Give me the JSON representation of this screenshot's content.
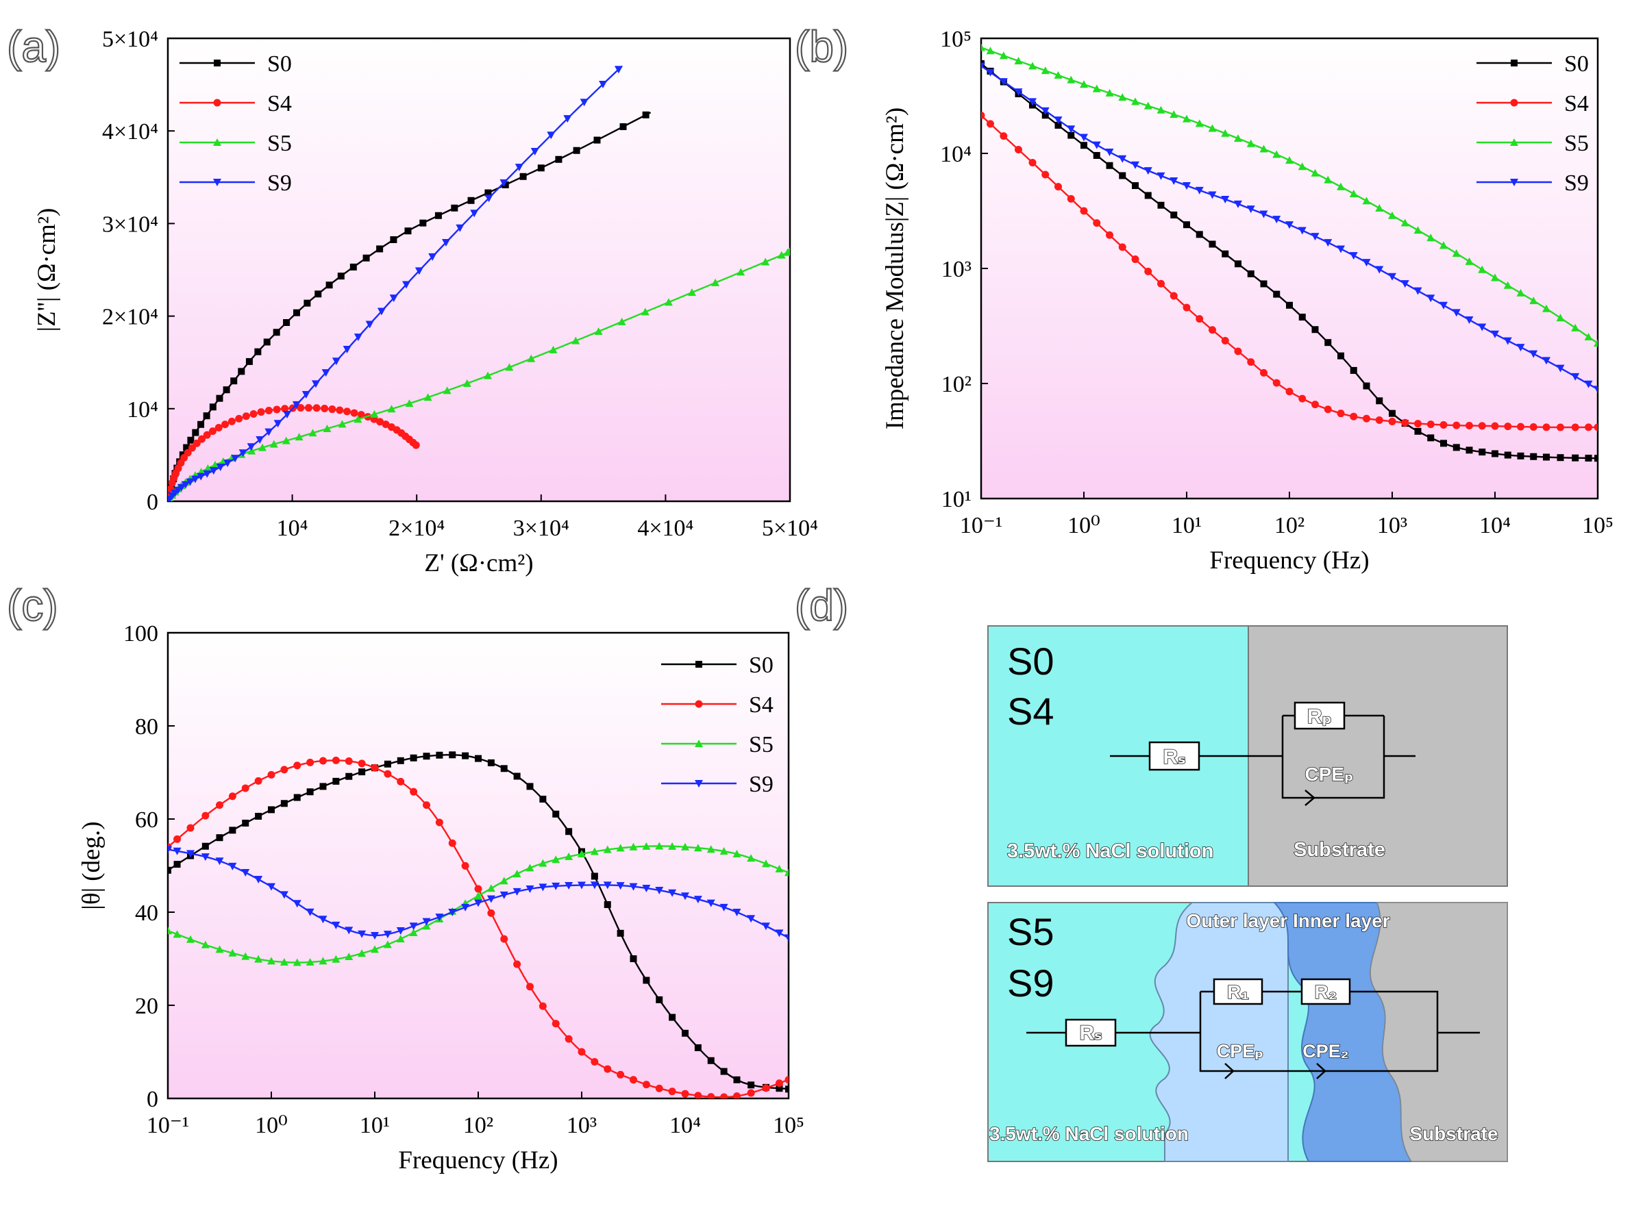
{
  "panels": {
    "a": {
      "label": "(a)"
    },
    "b": {
      "label": "(b)"
    },
    "c": {
      "label": "(c)"
    },
    "d": {
      "label": "(d)"
    }
  },
  "colors": {
    "S0": "#000000",
    "S4": "#ff1a1a",
    "S5": "#22dd22",
    "S9": "#1a2bff",
    "plot_bg_top": "#ffffff",
    "plot_bg_bottom": "#fbd0f4"
  },
  "chart_data": [
    {
      "id": "a",
      "type": "line",
      "subtype": "nyquist",
      "xlabel": "Z' (Ω·cm²)",
      "ylabel": "|Z''| (Ω·cm²)",
      "xlim": [
        0,
        50000
      ],
      "ylim": [
        0,
        50000
      ],
      "xticks": [
        10000,
        20000,
        30000,
        40000,
        50000
      ],
      "yticks": [
        0,
        10000,
        20000,
        30000,
        40000,
        50000
      ],
      "tick_labels_x": [
        "10⁴",
        "2×10⁴",
        "3×10⁴",
        "4×10⁴",
        "5×10⁴"
      ],
      "tick_labels_y": [
        "0",
        "10⁴",
        "2×10⁴",
        "3×10⁴",
        "4×10⁴",
        "5×10⁴"
      ],
      "legend": [
        "S0",
        "S4",
        "S5",
        "S9"
      ],
      "legend_position": "top-left",
      "series": [
        {
          "name": "S0",
          "marker": "square",
          "x": [
            0,
            400,
            800,
            1500,
            2500,
            3800,
            5300,
            7000,
            9000,
            11200,
            13600,
            16300,
            19300,
            22600,
            26200,
            30000,
            33900,
            38800
          ],
          "y": [
            0,
            2200,
            3800,
            5800,
            8000,
            10500,
            13000,
            15800,
            18600,
            21400,
            24000,
            26600,
            29200,
            31400,
            33600,
            36000,
            38600,
            42000
          ]
        },
        {
          "name": "S4",
          "marker": "circle",
          "x": [
            0,
            300,
            700,
            1300,
            2200,
            3300,
            4600,
            6100,
            7700,
            9400,
            11100,
            12800,
            14400,
            15900,
            17200,
            18400,
            19300,
            20000
          ],
          "y": [
            0,
            1800,
            3200,
            4700,
            6100,
            7300,
            8300,
            9100,
            9700,
            10000,
            10100,
            10000,
            9700,
            9200,
            8500,
            7700,
            6800,
            6000
          ]
        },
        {
          "name": "S5",
          "marker": "triangle-up",
          "x": [
            0,
            500,
            1200,
            2200,
            3600,
            5400,
            7600,
            10200,
            13200,
            16600,
            20400,
            24600,
            29200,
            34000,
            39000,
            44000,
            49000,
            50000
          ],
          "y": [
            0,
            900,
            1800,
            2800,
            3800,
            4800,
            5800,
            6800,
            8000,
            9400,
            11000,
            13000,
            15400,
            18000,
            20800,
            23600,
            26400,
            27000
          ]
        },
        {
          "name": "S9",
          "marker": "triangle-down",
          "x": [
            0,
            500,
            1200,
            2200,
            3500,
            5000,
            6700,
            8600,
            10600,
            12700,
            15000,
            17500,
            20200,
            23100,
            26200,
            29500,
            33000,
            36500
          ],
          "y": [
            0,
            800,
            1600,
            2400,
            3200,
            4300,
            5900,
            8100,
            10800,
            13900,
            17300,
            21000,
            24900,
            29000,
            33300,
            37800,
            42500,
            47000
          ]
        }
      ]
    },
    {
      "id": "b",
      "type": "line",
      "subtype": "bode-modulus",
      "xlabel": "Frequency (Hz)",
      "ylabel": "Impedance Modulus|Z| (Ω·cm²)",
      "xscale": "log",
      "yscale": "log",
      "xlim": [
        0.1,
        100000
      ],
      "ylim": [
        10,
        100000
      ],
      "tick_labels_x": [
        "10⁻¹",
        "10⁰",
        "10¹",
        "10²",
        "10³",
        "10⁴",
        "10⁵"
      ],
      "tick_labels_y": [
        "10¹",
        "10²",
        "10³",
        "10⁴",
        "10⁵"
      ],
      "legend": [
        "S0",
        "S4",
        "S5",
        "S9"
      ],
      "legend_position": "top-right",
      "series": [
        {
          "name": "S0",
          "marker": "square",
          "logx": [
            -1,
            -0.5,
            0,
            0.5,
            1,
            1.5,
            2,
            2.5,
            3,
            3.5,
            4,
            4.5,
            5
          ],
          "logy": [
            4.78,
            4.42,
            4.07,
            3.72,
            3.38,
            3.04,
            2.68,
            2.24,
            1.74,
            1.48,
            1.39,
            1.36,
            1.35
          ]
        },
        {
          "name": "S4",
          "marker": "circle",
          "logx": [
            -1,
            -0.5,
            0,
            0.5,
            1,
            1.5,
            2,
            2.5,
            3,
            3.5,
            4,
            4.5,
            5
          ],
          "logy": [
            4.33,
            3.92,
            3.5,
            3.08,
            2.66,
            2.28,
            1.93,
            1.74,
            1.67,
            1.64,
            1.63,
            1.62,
            1.62
          ]
        },
        {
          "name": "S5",
          "marker": "triangle-up",
          "logx": [
            -1,
            -0.5,
            0,
            0.5,
            1,
            1.5,
            2,
            2.5,
            3,
            3.5,
            4,
            4.5,
            5
          ],
          "logy": [
            4.92,
            4.76,
            4.6,
            4.45,
            4.3,
            4.13,
            3.94,
            3.71,
            3.46,
            3.2,
            2.92,
            2.65,
            2.35
          ]
        },
        {
          "name": "S9",
          "marker": "triangle-down",
          "logx": [
            -1,
            -0.5,
            0,
            0.5,
            1,
            1.5,
            2,
            2.5,
            3,
            3.5,
            4,
            4.5,
            5
          ],
          "logy": [
            4.76,
            4.45,
            4.14,
            3.9,
            3.72,
            3.56,
            3.38,
            3.17,
            2.93,
            2.68,
            2.43,
            2.2,
            1.95
          ]
        }
      ]
    },
    {
      "id": "c",
      "type": "line",
      "subtype": "bode-phase",
      "xlabel": "Frequency (Hz)",
      "ylabel": "|θ| (deg.)",
      "xscale": "log",
      "xlim": [
        0.1,
        100000
      ],
      "ylim": [
        0,
        100
      ],
      "yticks": [
        0,
        20,
        40,
        60,
        80,
        100
      ],
      "tick_labels_x": [
        "10⁻¹",
        "10⁰",
        "10¹",
        "10²",
        "10³",
        "10⁴",
        "10⁵"
      ],
      "tick_labels_y": [
        "0",
        "20",
        "40",
        "60",
        "80",
        "100"
      ],
      "legend": [
        "S0",
        "S4",
        "S5",
        "S9"
      ],
      "legend_position": "top-right",
      "series": [
        {
          "name": "S0",
          "marker": "square",
          "logx": [
            -1,
            -0.5,
            0,
            0.5,
            1,
            1.5,
            2,
            2.5,
            3,
            3.5,
            4,
            4.5,
            5
          ],
          "y": [
            49,
            56,
            62,
            67,
            71,
            73.5,
            73,
            67,
            53,
            30,
            14,
            4,
            2
          ]
        },
        {
          "name": "S4",
          "marker": "circle",
          "logx": [
            -1,
            -0.5,
            0,
            0.5,
            1,
            1.5,
            2,
            2.5,
            3,
            3.5,
            4,
            4.5,
            5
          ],
          "y": [
            54,
            63,
            69.5,
            72.5,
            71,
            63,
            45,
            24,
            10,
            4,
            1,
            0.5,
            4
          ]
        },
        {
          "name": "S5",
          "marker": "triangle-up",
          "logx": [
            -1,
            -0.5,
            0,
            0.5,
            1,
            1.5,
            2,
            2.5,
            3,
            3.5,
            4,
            4.5,
            5
          ],
          "y": [
            36,
            32,
            29.5,
            29.5,
            32,
            37,
            43.5,
            49.5,
            52.5,
            54,
            54,
            52.5,
            48.5
          ]
        },
        {
          "name": "S9",
          "marker": "triangle-down",
          "logx": [
            -1,
            -0.5,
            0,
            0.5,
            1,
            1.5,
            2,
            2.5,
            3,
            3.5,
            4,
            4.5,
            5
          ],
          "y": [
            53.5,
            51,
            45.5,
            38.5,
            35,
            38,
            42,
            45,
            45.8,
            45.5,
            43.5,
            40,
            34.5
          ]
        }
      ]
    }
  ],
  "diagram_d": {
    "top": {
      "samples": [
        "S0",
        "S4"
      ],
      "solution_label": "3.5wt.% NaCl solution",
      "substrate_label": "Substrate",
      "rs_label": "Rₛ",
      "rp_label": "Rₚ",
      "cpe_label": "CPEₚ"
    },
    "bottom": {
      "samples": [
        "S5",
        "S9"
      ],
      "layer_header": "Outer layer Inner layer",
      "solution_label": "3.5wt.% NaCl solution",
      "substrate_label": "Substrate",
      "rs_label": "Rₛ",
      "r1_label": "R₁",
      "r2_label": "R₂",
      "cpe_p_label": "CPEₚ",
      "cpe_2_label": "CPE₂"
    }
  }
}
